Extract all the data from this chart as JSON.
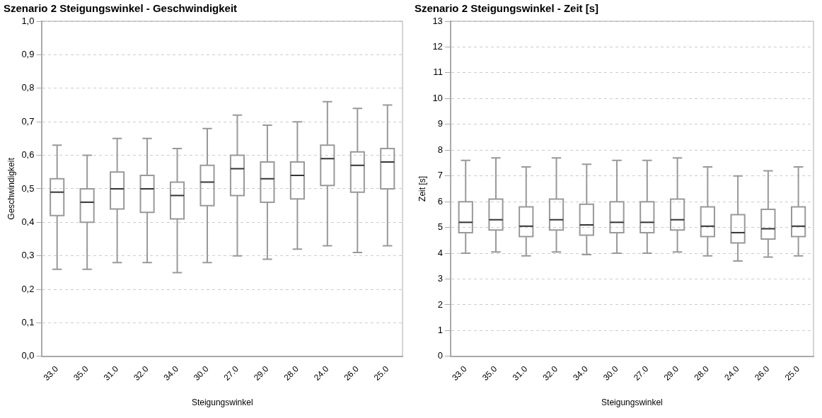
{
  "chart_data": [
    {
      "type": "box",
      "title": "Szenario 2 Steigungswinkel - Geschwindigkeit",
      "xlabel": "Steigungswinkel",
      "ylabel": "Geschwindigkeit",
      "categories": [
        "33.0",
        "35.0",
        "31.0",
        "32.0",
        "34.0",
        "30.0",
        "27.0",
        "29.0",
        "28.0",
        "24.0",
        "26.0",
        "25.0"
      ],
      "boxes": [
        {
          "low": 0.26,
          "q1": 0.42,
          "median": 0.49,
          "q3": 0.53,
          "high": 0.63
        },
        {
          "low": 0.26,
          "q1": 0.4,
          "median": 0.46,
          "q3": 0.5,
          "high": 0.6
        },
        {
          "low": 0.28,
          "q1": 0.44,
          "median": 0.5,
          "q3": 0.55,
          "high": 0.65
        },
        {
          "low": 0.28,
          "q1": 0.43,
          "median": 0.5,
          "q3": 0.54,
          "high": 0.65
        },
        {
          "low": 0.25,
          "q1": 0.41,
          "median": 0.48,
          "q3": 0.52,
          "high": 0.62
        },
        {
          "low": 0.28,
          "q1": 0.45,
          "median": 0.52,
          "q3": 0.57,
          "high": 0.68
        },
        {
          "low": 0.3,
          "q1": 0.48,
          "median": 0.56,
          "q3": 0.6,
          "high": 0.72
        },
        {
          "low": 0.29,
          "q1": 0.46,
          "median": 0.53,
          "q3": 0.58,
          "high": 0.69
        },
        {
          "low": 0.32,
          "q1": 0.47,
          "median": 0.54,
          "q3": 0.58,
          "high": 0.7
        },
        {
          "low": 0.33,
          "q1": 0.51,
          "median": 0.59,
          "q3": 0.63,
          "high": 0.76
        },
        {
          "low": 0.31,
          "q1": 0.49,
          "median": 0.57,
          "q3": 0.61,
          "high": 0.74
        },
        {
          "low": 0.33,
          "q1": 0.5,
          "median": 0.58,
          "q3": 0.62,
          "high": 0.75
        }
      ],
      "color": "#999999",
      "ylim": [
        0,
        1
      ],
      "yticks": [
        {
          "value": 0,
          "label": "0,0"
        },
        {
          "value": 0.1,
          "label": "0,1"
        },
        {
          "value": 0.2,
          "label": "0,2"
        },
        {
          "value": 0.3,
          "label": "0,3"
        },
        {
          "value": 0.4,
          "label": "0,4"
        },
        {
          "value": 0.5,
          "label": "0,5"
        },
        {
          "value": 0.6,
          "label": "0,6"
        },
        {
          "value": 0.7,
          "label": "0,7"
        },
        {
          "value": 0.8,
          "label": "0,8"
        },
        {
          "value": 0.9,
          "label": "0,9"
        },
        {
          "value": 1,
          "label": "1,0"
        }
      ],
      "grid": "y",
      "legend": false
    },
    {
      "type": "box",
      "title": "Szenario 2 Steigungswinkel - Zeit [s]",
      "xlabel": "Steigungswinkel",
      "ylabel": "Zeit [s]",
      "categories": [
        "33.0",
        "35.0",
        "31.0",
        "32.0",
        "34.0",
        "30.0",
        "27.0",
        "29.0",
        "28.0",
        "24.0",
        "26.0",
        "25.0"
      ],
      "boxes": [
        {
          "low": 4.0,
          "q1": 4.8,
          "median": 5.2,
          "q3": 6.0,
          "high": 7.6
        },
        {
          "low": 4.05,
          "q1": 4.9,
          "median": 5.3,
          "q3": 6.1,
          "high": 7.7
        },
        {
          "low": 3.9,
          "q1": 4.65,
          "median": 5.05,
          "q3": 5.8,
          "high": 7.35
        },
        {
          "low": 4.05,
          "q1": 4.9,
          "median": 5.3,
          "q3": 6.1,
          "high": 7.7
        },
        {
          "low": 3.95,
          "q1": 4.7,
          "median": 5.1,
          "q3": 5.9,
          "high": 7.45
        },
        {
          "low": 4.0,
          "q1": 4.8,
          "median": 5.2,
          "q3": 6.0,
          "high": 7.6
        },
        {
          "low": 4.0,
          "q1": 4.8,
          "median": 5.2,
          "q3": 6.0,
          "high": 7.6
        },
        {
          "low": 4.05,
          "q1": 4.9,
          "median": 5.3,
          "q3": 6.1,
          "high": 7.7
        },
        {
          "low": 3.9,
          "q1": 4.65,
          "median": 5.05,
          "q3": 5.8,
          "high": 7.35
        },
        {
          "low": 3.7,
          "q1": 4.4,
          "median": 4.8,
          "q3": 5.5,
          "high": 7.0
        },
        {
          "low": 3.85,
          "q1": 4.55,
          "median": 4.95,
          "q3": 5.7,
          "high": 7.2
        },
        {
          "low": 3.9,
          "q1": 4.65,
          "median": 5.05,
          "q3": 5.8,
          "high": 7.35
        }
      ],
      "color": "#999999",
      "ylim": [
        0,
        13
      ],
      "yticks": [
        0,
        1,
        2,
        3,
        4,
        5,
        6,
        7,
        8,
        9,
        10,
        11,
        12,
        13
      ],
      "grid": "y",
      "legend": false
    }
  ]
}
